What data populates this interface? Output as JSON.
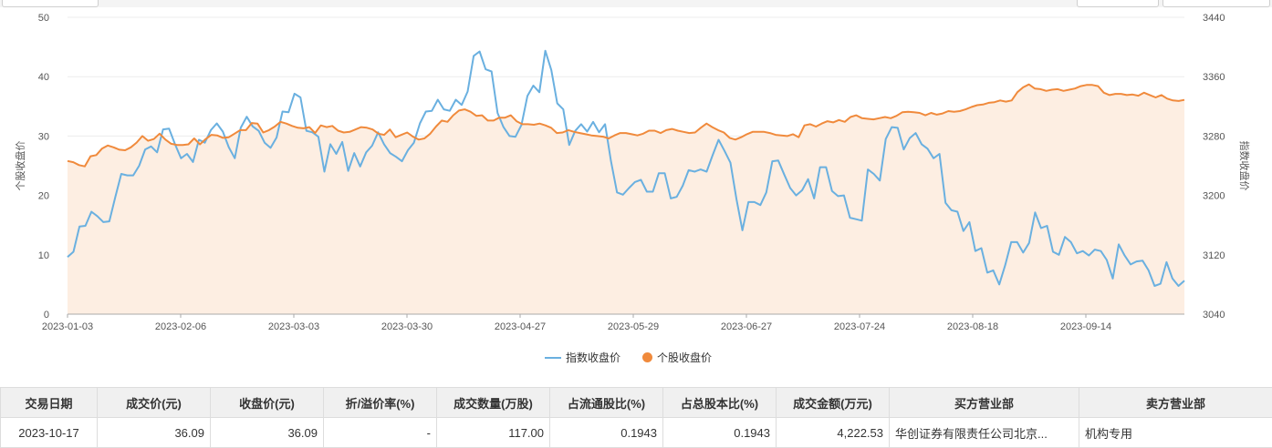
{
  "chart_data": {
    "type": "line",
    "title": "",
    "x_ticks": [
      "2023-01-03",
      "2023-02-06",
      "2023-03-03",
      "2023-03-30",
      "2023-04-27",
      "2023-05-29",
      "2023-06-27",
      "2023-07-24",
      "2023-08-18",
      "2023-09-14"
    ],
    "left_axis": {
      "label": "个股收盘价",
      "min": 0,
      "max": 50,
      "ticks": [
        0,
        10,
        20,
        30,
        40,
        50
      ]
    },
    "right_axis": {
      "label": "指数收盘价",
      "min": 3040,
      "max": 3440,
      "ticks": [
        3040,
        3120,
        3200,
        3280,
        3360,
        3440
      ]
    },
    "grid": true,
    "legend_position": "bottom",
    "series": [
      {
        "name": "指数收盘价",
        "axis": "right",
        "color": "#6ab0e0",
        "values": [
          3117,
          3124,
          3158,
          3159,
          3178,
          3172,
          3164,
          3165,
          3198,
          3229,
          3227,
          3227,
          3240,
          3262,
          3266,
          3258,
          3289,
          3290,
          3269,
          3250,
          3256,
          3245,
          3275,
          3271,
          3288,
          3297,
          3286,
          3265,
          3250,
          3291,
          3306,
          3293,
          3287,
          3271,
          3264,
          3278,
          3313,
          3312,
          3337,
          3332,
          3287,
          3285,
          3279,
          3232,
          3269,
          3256,
          3272,
          3233,
          3257,
          3239,
          3258,
          3267,
          3285,
          3269,
          3257,
          3252,
          3246,
          3261,
          3271,
          3297,
          3313,
          3314,
          3329,
          3316,
          3314,
          3329,
          3322,
          3340,
          3388,
          3394,
          3370,
          3367,
          3311,
          3292,
          3280,
          3279,
          3295,
          3334,
          3348,
          3339,
          3395,
          3369,
          3324,
          3316,
          3268,
          3287,
          3296,
          3286,
          3299,
          3285,
          3296,
          3246,
          3204,
          3201,
          3210,
          3218,
          3221,
          3205,
          3205,
          3230,
          3230,
          3196,
          3198,
          3213,
          3234,
          3232,
          3235,
          3232,
          3254,
          3275,
          3260,
          3244,
          3195,
          3153,
          3191,
          3191,
          3187,
          3204,
          3246,
          3247,
          3228,
          3210,
          3200,
          3207,
          3222,
          3196,
          3238,
          3238,
          3206,
          3199,
          3200,
          3170,
          3168,
          3166,
          3235,
          3229,
          3220,
          3276,
          3292,
          3291,
          3262,
          3277,
          3284,
          3269,
          3263,
          3250,
          3256,
          3190,
          3180,
          3178,
          3152,
          3164,
          3125,
          3129,
          3096,
          3099,
          3080,
          3106,
          3137,
          3137,
          3123,
          3136,
          3177,
          3156,
          3159,
          3124,
          3120,
          3144,
          3137,
          3122,
          3125,
          3119,
          3127,
          3125,
          3113,
          3088,
          3134,
          3119,
          3107,
          3111,
          3112,
          3099,
          3078,
          3081,
          3110,
          3088,
          3078,
          3085
        ]
      },
      {
        "name": "个股收盘价",
        "axis": "left",
        "color": "#f08a3c",
        "values": [
          25.8,
          25.6,
          25.1,
          24.9,
          26.6,
          26.8,
          27.9,
          28.4,
          28.1,
          27.7,
          27.6,
          28.1,
          28.9,
          30.0,
          29.2,
          29.5,
          30.4,
          29.4,
          28.7,
          28.5,
          28.5,
          28.6,
          29.6,
          28.6,
          29.5,
          30.2,
          30.1,
          29.7,
          29.8,
          30.4,
          31.0,
          31.0,
          32.2,
          32.1,
          30.6,
          31.0,
          31.6,
          32.4,
          32.1,
          31.7,
          31.4,
          31.3,
          31.5,
          30.5,
          31.8,
          31.5,
          31.7,
          30.9,
          30.6,
          30.7,
          31.1,
          31.5,
          31.4,
          31.1,
          30.4,
          30.2,
          31.1,
          29.8,
          30.2,
          30.6,
          29.9,
          29.4,
          29.6,
          30.4,
          31.6,
          32.6,
          32.4,
          33.5,
          34.3,
          34.5,
          34.1,
          33.4,
          33.5,
          32.6,
          32.6,
          33.1,
          33.1,
          33.5,
          32.5,
          32.0,
          32.0,
          31.9,
          32.1,
          31.8,
          31.4,
          30.5,
          30.6,
          31.0,
          30.7,
          30.5,
          30.3,
          30.1,
          30.0,
          29.9,
          29.6,
          30.1,
          30.5,
          30.5,
          30.3,
          30.1,
          30.4,
          30.9,
          30.9,
          30.5,
          31.0,
          31.2,
          30.9,
          30.7,
          30.5,
          30.6,
          31.4,
          32.1,
          31.5,
          31.0,
          30.6,
          29.7,
          29.4,
          29.8,
          30.3,
          30.7,
          30.7,
          30.7,
          30.5,
          30.2,
          30.1,
          30.0,
          30.3,
          29.8,
          31.8,
          32.0,
          31.6,
          32.1,
          32.5,
          32.3,
          32.7,
          32.4,
          33.2,
          33.5,
          33.0,
          32.9,
          32.8,
          33.0,
          33.2,
          33.0,
          33.4,
          34.0,
          34.1,
          34.0,
          33.9,
          33.5,
          33.9,
          33.6,
          33.8,
          34.2,
          34.1,
          34.2,
          34.5,
          34.9,
          35.2,
          35.3,
          35.6,
          35.7,
          36.0,
          35.8,
          36.0,
          37.4,
          38.2,
          38.7,
          38.0,
          37.9,
          37.6,
          37.8,
          37.9,
          37.6,
          37.8,
          38.0,
          38.4,
          38.6,
          38.6,
          38.4,
          37.3,
          36.9,
          37.1,
          37.1,
          36.9,
          37.0,
          36.8,
          37.3,
          36.9,
          36.5,
          36.9,
          36.3,
          36.0,
          35.9,
          36.09
        ]
      }
    ]
  },
  "table": {
    "headers": [
      "交易日期",
      "成交价(元)",
      "收盘价(元)",
      "折/溢价率(%)",
      "成交数量(万股)",
      "占流通股比(%)",
      "占总股本比(%)",
      "成交金额(万元)",
      "买方营业部",
      "卖方营业部"
    ],
    "rows": [
      [
        "2023-10-17",
        "36.09",
        "36.09",
        "-",
        "117.00",
        "0.1943",
        "0.1943",
        "4,222.53",
        "华创证券有限责任公司北京...",
        "机构专用"
      ]
    ]
  }
}
